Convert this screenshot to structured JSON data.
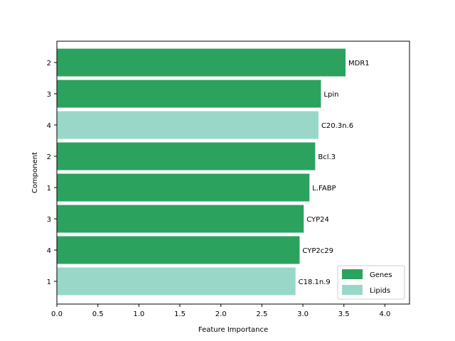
{
  "chart_data": {
    "type": "bar",
    "orientation": "horizontal",
    "xlabel": "Feature Importance",
    "ylabel": "Component",
    "xlim": [
      0,
      4.3
    ],
    "xticks": [
      0.0,
      0.5,
      1.0,
      1.5,
      2.0,
      2.5,
      3.0,
      3.5,
      4.0
    ],
    "xtick_labels": [
      "0.0",
      "0.5",
      "1.0",
      "1.5",
      "2.0",
      "2.5",
      "3.0",
      "3.5",
      "4.0"
    ],
    "grid": false,
    "legend": {
      "placement": "bottom-right",
      "entries": [
        {
          "label": "Genes",
          "color": "#2ca25f"
        },
        {
          "label": "Lipids",
          "color": "#99d8c9"
        }
      ]
    },
    "bars": [
      {
        "component": "2",
        "label": "MDR1",
        "value": 3.52,
        "group": "Genes"
      },
      {
        "component": "3",
        "label": "Lpin",
        "value": 3.22,
        "group": "Genes"
      },
      {
        "component": "4",
        "label": "C20.3n.6",
        "value": 3.19,
        "group": "Lipids"
      },
      {
        "component": "2",
        "label": "Bcl.3",
        "value": 3.15,
        "group": "Genes"
      },
      {
        "component": "1",
        "label": "L.FABP",
        "value": 3.08,
        "group": "Genes"
      },
      {
        "component": "3",
        "label": "CYP24",
        "value": 3.01,
        "group": "Genes"
      },
      {
        "component": "4",
        "label": "CYP2c29",
        "value": 2.96,
        "group": "Genes"
      },
      {
        "component": "1",
        "label": "C18.1n.9",
        "value": 2.91,
        "group": "Lipids"
      }
    ]
  }
}
